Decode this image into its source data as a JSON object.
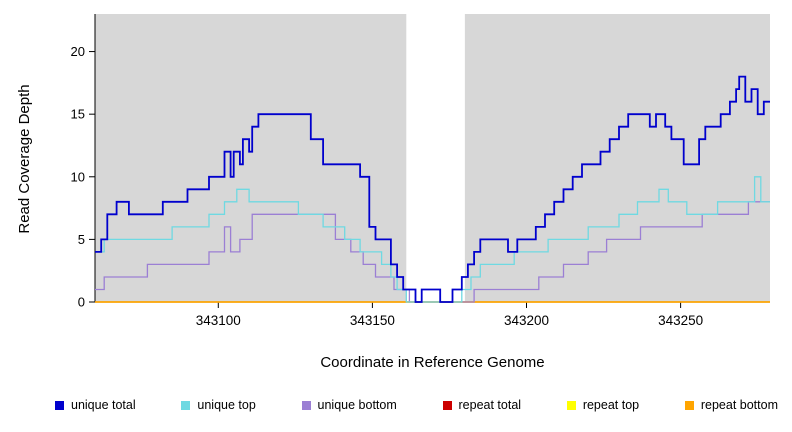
{
  "chart_data": {
    "type": "line",
    "step": true,
    "title": "",
    "xlabel": "Coordinate in Reference Genome",
    "ylabel": "Read Coverage Depth",
    "xlim": [
      343060,
      343279
    ],
    "ylim": [
      0,
      23
    ],
    "xticks": [
      343100,
      343150,
      343200,
      343250
    ],
    "yticks": [
      0,
      5,
      10,
      15,
      20
    ],
    "plot_bg": "#d7d7d7",
    "gap_region": [
      343161,
      343180
    ],
    "legend_position": "bottom",
    "series": [
      {
        "name": "unique total",
        "color": "#0000cd",
        "width": 1.8,
        "points": [
          [
            343060,
            4
          ],
          [
            343062,
            5
          ],
          [
            343064,
            7
          ],
          [
            343067,
            8
          ],
          [
            343071,
            7
          ],
          [
            343082,
            8
          ],
          [
            343090,
            9
          ],
          [
            343094,
            9
          ],
          [
            343097,
            10
          ],
          [
            343102,
            12
          ],
          [
            343104,
            10
          ],
          [
            343105,
            12
          ],
          [
            343107,
            11
          ],
          [
            343108,
            13
          ],
          [
            343110,
            12
          ],
          [
            343111,
            14
          ],
          [
            343113,
            15
          ],
          [
            343130,
            13
          ],
          [
            343134,
            11
          ],
          [
            343146,
            10
          ],
          [
            343149,
            6
          ],
          [
            343151,
            5
          ],
          [
            343156,
            3
          ],
          [
            343158,
            2
          ],
          [
            343160,
            1
          ],
          [
            343164,
            0
          ],
          [
            343166,
            1
          ],
          [
            343172,
            0
          ],
          [
            343176,
            1
          ],
          [
            343179,
            2
          ],
          [
            343181,
            3
          ],
          [
            343183,
            4
          ],
          [
            343185,
            5
          ],
          [
            343194,
            4
          ],
          [
            343197,
            5
          ],
          [
            343203,
            6
          ],
          [
            343206,
            7
          ],
          [
            343209,
            8
          ],
          [
            343212,
            9
          ],
          [
            343215,
            10
          ],
          [
            343218,
            11
          ],
          [
            343224,
            12
          ],
          [
            343227,
            13
          ],
          [
            343230,
            14
          ],
          [
            343233,
            15
          ],
          [
            343240,
            14
          ],
          [
            343242,
            15
          ],
          [
            343245,
            14
          ],
          [
            343247,
            13
          ],
          [
            343251,
            11
          ],
          [
            343256,
            13
          ],
          [
            343258,
            14
          ],
          [
            343263,
            15
          ],
          [
            343266,
            16
          ],
          [
            343268,
            17
          ],
          [
            343269,
            18
          ],
          [
            343271,
            16
          ],
          [
            343273,
            17
          ],
          [
            343275,
            15
          ],
          [
            343277,
            16
          ]
        ]
      },
      {
        "name": "unique top",
        "color": "#6fd9e2",
        "width": 1.3,
        "points": [
          [
            343060,
            4
          ],
          [
            343063,
            5
          ],
          [
            343085,
            6
          ],
          [
            343097,
            7
          ],
          [
            343102,
            8
          ],
          [
            343106,
            9
          ],
          [
            343110,
            8
          ],
          [
            343126,
            7
          ],
          [
            343134,
            6
          ],
          [
            343141,
            5
          ],
          [
            343146,
            4
          ],
          [
            343153,
            3
          ],
          [
            343156,
            2
          ],
          [
            343158,
            1
          ],
          [
            343161,
            0
          ],
          [
            343179,
            1
          ],
          [
            343182,
            2
          ],
          [
            343185,
            3
          ],
          [
            343196,
            4
          ],
          [
            343207,
            5
          ],
          [
            343220,
            6
          ],
          [
            343230,
            7
          ],
          [
            343236,
            8
          ],
          [
            343243,
            9
          ],
          [
            343246,
            8
          ],
          [
            343252,
            7
          ],
          [
            343262,
            8
          ],
          [
            343274,
            10
          ],
          [
            343276,
            8
          ]
        ]
      },
      {
        "name": "unique bottom",
        "color": "#9b7fd4",
        "width": 1.3,
        "points": [
          [
            343060,
            1
          ],
          [
            343063,
            2
          ],
          [
            343077,
            3
          ],
          [
            343097,
            4
          ],
          [
            343102,
            6
          ],
          [
            343104,
            4
          ],
          [
            343107,
            5
          ],
          [
            343111,
            7
          ],
          [
            343138,
            5
          ],
          [
            343143,
            4
          ],
          [
            343147,
            3
          ],
          [
            343151,
            2
          ],
          [
            343157,
            1
          ],
          [
            343162,
            0
          ],
          [
            343183,
            1
          ],
          [
            343204,
            2
          ],
          [
            343212,
            3
          ],
          [
            343220,
            4
          ],
          [
            343226,
            5
          ],
          [
            343237,
            6
          ],
          [
            343257,
            7
          ],
          [
            343272,
            8
          ]
        ]
      },
      {
        "name": "repeat total",
        "color": "#cc0000",
        "width": 1.2,
        "points": [
          [
            343060,
            0
          ],
          [
            343279,
            0
          ]
        ]
      },
      {
        "name": "repeat top",
        "color": "#ffff00",
        "width": 1.2,
        "points": [
          [
            343060,
            0
          ],
          [
            343279,
            0
          ]
        ]
      },
      {
        "name": "repeat bottom",
        "color": "#ffa500",
        "width": 1.6,
        "points": [
          [
            343060,
            0
          ],
          [
            343279,
            0
          ]
        ]
      }
    ]
  }
}
